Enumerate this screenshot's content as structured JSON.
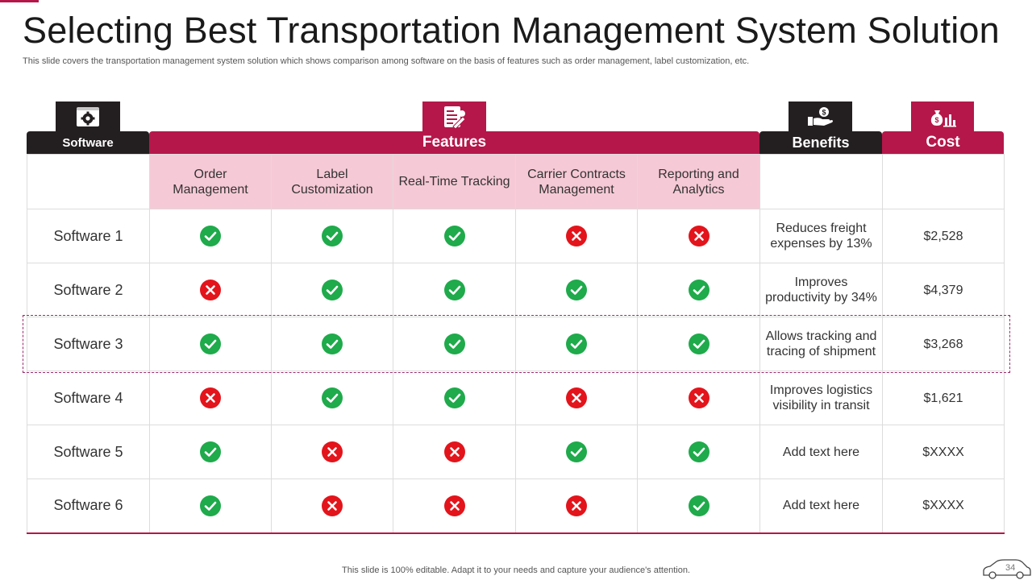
{
  "title": "Selecting Best Transportation Management System Solution",
  "subtitle": "This slide covers the transportation management system solution which shows comparison among software on the basis of features such as order management, label customization, etc.",
  "headers": {
    "software": "Software",
    "features": "Features",
    "benefits": "Benefits",
    "cost": "Cost"
  },
  "header_icons": {
    "software": "gear-icon",
    "features": "document-edit-icon",
    "benefits": "hand-money-icon",
    "cost": "money-bag-chart-icon"
  },
  "feature_columns": [
    "Order Management",
    "Label Customization",
    "Real-Time Tracking",
    "Carrier Contracts Management",
    "Reporting and Analytics"
  ],
  "rows": [
    {
      "name": "Software 1",
      "features": [
        true,
        true,
        true,
        false,
        false
      ],
      "benefit": "Reduces freight expenses by 13%",
      "cost": "$2,528"
    },
    {
      "name": "Software 2",
      "features": [
        false,
        true,
        true,
        true,
        true
      ],
      "benefit": "Improves productivity by 34%",
      "cost": "$4,379"
    },
    {
      "name": "Software 3",
      "features": [
        true,
        true,
        true,
        true,
        true
      ],
      "benefit": "Allows tracking and tracing of shipment",
      "cost": "$3,268"
    },
    {
      "name": "Software 4",
      "features": [
        false,
        true,
        true,
        false,
        false
      ],
      "benefit": "Improves logistics visibility in transit",
      "cost": "$1,621"
    },
    {
      "name": "Software 5",
      "features": [
        true,
        false,
        false,
        true,
        true
      ],
      "benefit": "Add text here",
      "cost": "$XXXX"
    },
    {
      "name": "Software 6",
      "features": [
        true,
        false,
        false,
        false,
        true
      ],
      "benefit": "Add text here",
      "cost": "$XXXX"
    }
  ],
  "highlighted_row": "Software 3",
  "colors": {
    "accent": "#b5174a",
    "dark": "#231f20",
    "feature_bg": "#f6c9d6",
    "check": "#1faa4b",
    "cross": "#e3141b"
  },
  "footer": "This slide is 100% editable. Adapt it to your needs and capture your audience's attention.",
  "page_number": "34"
}
